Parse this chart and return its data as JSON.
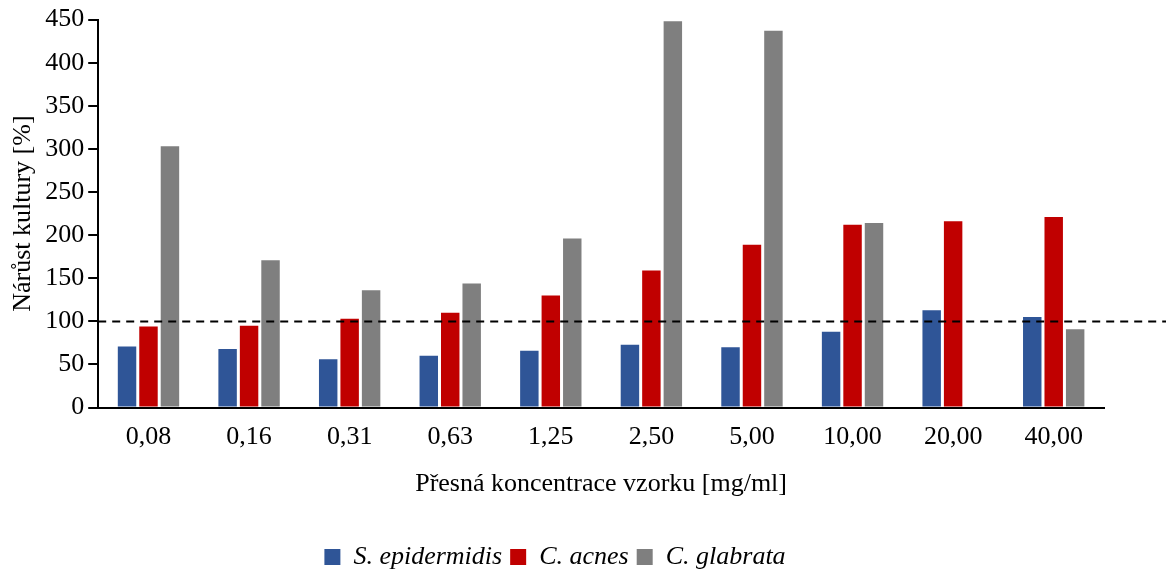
{
  "chart_data": {
    "type": "bar",
    "xlabel": "Přesná koncentrace vzorku [mg/ml]",
    "ylabel": "Nárůst kultury [%]",
    "categories": [
      "0,08",
      "0,16",
      "0,31",
      "0,63",
      "1,25",
      "2,50",
      "5,00",
      "10,00",
      "20,00",
      "40,00"
    ],
    "series": [
      {
        "name": "S. epidermidis",
        "color": "#2f5597",
        "values": [
          71,
          68,
          56,
          60,
          66,
          73,
          70,
          88,
          113,
          105
        ]
      },
      {
        "name": "C. acnes",
        "color": "#c00000",
        "values": [
          94,
          95,
          103,
          110,
          130,
          159,
          189,
          212,
          216,
          221
        ]
      },
      {
        "name": "C. glabrata",
        "color": "#7f7f7f",
        "values": [
          303,
          171,
          136,
          144,
          196,
          448,
          437,
          214,
          0,
          91
        ]
      }
    ],
    "ylim": [
      0,
      450
    ],
    "yticks": [
      0,
      50,
      100,
      150,
      200,
      250,
      300,
      350,
      400,
      450
    ],
    "grid": false,
    "legend": "bottom",
    "ref_lines": [
      {
        "axis": "y",
        "value": 100,
        "color": "#000000",
        "line_style": "dashed"
      }
    ]
  }
}
